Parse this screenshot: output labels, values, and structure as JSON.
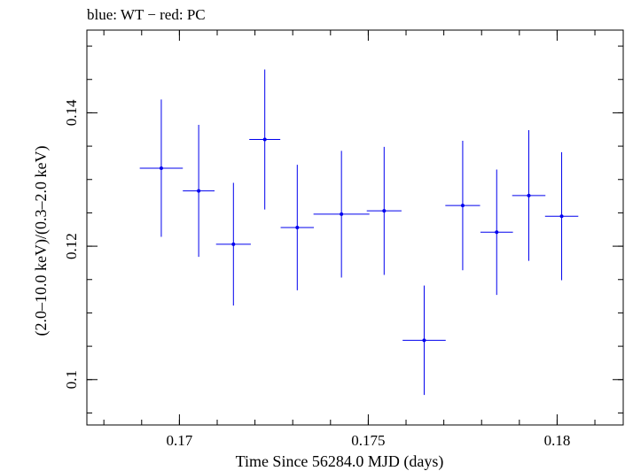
{
  "chart_data": {
    "type": "scatter",
    "title": "blue: WT − red: PC",
    "xlabel": "Time Since 56284.0 MJD (days)",
    "ylabel": "(2.0–10.0 keV)/(0.3–2.0 keV)",
    "xlim": [
      0.16755,
      0.18175
    ],
    "ylim": [
      0.0932,
      0.1524
    ],
    "x_ticks": [
      0.17,
      0.175,
      0.18
    ],
    "x_tick_labels": [
      "0.17",
      "0.175",
      "0.18"
    ],
    "y_ticks": [
      0.1,
      0.12,
      0.14
    ],
    "y_tick_labels": [
      "0.1",
      "0.12",
      "0.14"
    ],
    "x_minor_step": 0.001,
    "y_minor_step": 0.005,
    "grid": false,
    "color": "#0000ee",
    "series": [
      {
        "points": [
          {
            "x": 0.16952,
            "xerr": 0.00057,
            "y": 0.1317,
            "yerr": 0.0103
          },
          {
            "x": 0.17051,
            "xerr": 0.00042,
            "y": 0.1283,
            "yerr": 0.0099
          },
          {
            "x": 0.17143,
            "xerr": 0.00046,
            "y": 0.1203,
            "yerr": 0.0092
          },
          {
            "x": 0.17226,
            "xerr": 0.00041,
            "y": 0.136,
            "yerr": 0.0105
          },
          {
            "x": 0.17312,
            "xerr": 0.00044,
            "y": 0.1228,
            "yerr": 0.0094
          },
          {
            "x": 0.17429,
            "xerr": 0.00074,
            "y": 0.1248,
            "yerr": 0.0095
          },
          {
            "x": 0.17542,
            "xerr": 0.00046,
            "y": 0.1253,
            "yerr": 0.0096
          },
          {
            "x": 0.17648,
            "xerr": 0.00057,
            "y": 0.1059,
            "yerr": 0.0082
          },
          {
            "x": 0.1775,
            "xerr": 0.00046,
            "y": 0.1261,
            "yerr": 0.0097
          },
          {
            "x": 0.1784,
            "xerr": 0.00043,
            "y": 0.1221,
            "yerr": 0.0094
          },
          {
            "x": 0.17925,
            "xerr": 0.00044,
            "y": 0.1276,
            "yerr": 0.0098
          },
          {
            "x": 0.18012,
            "xerr": 0.00044,
            "y": 0.1245,
            "yerr": 0.0096
          }
        ]
      }
    ]
  }
}
